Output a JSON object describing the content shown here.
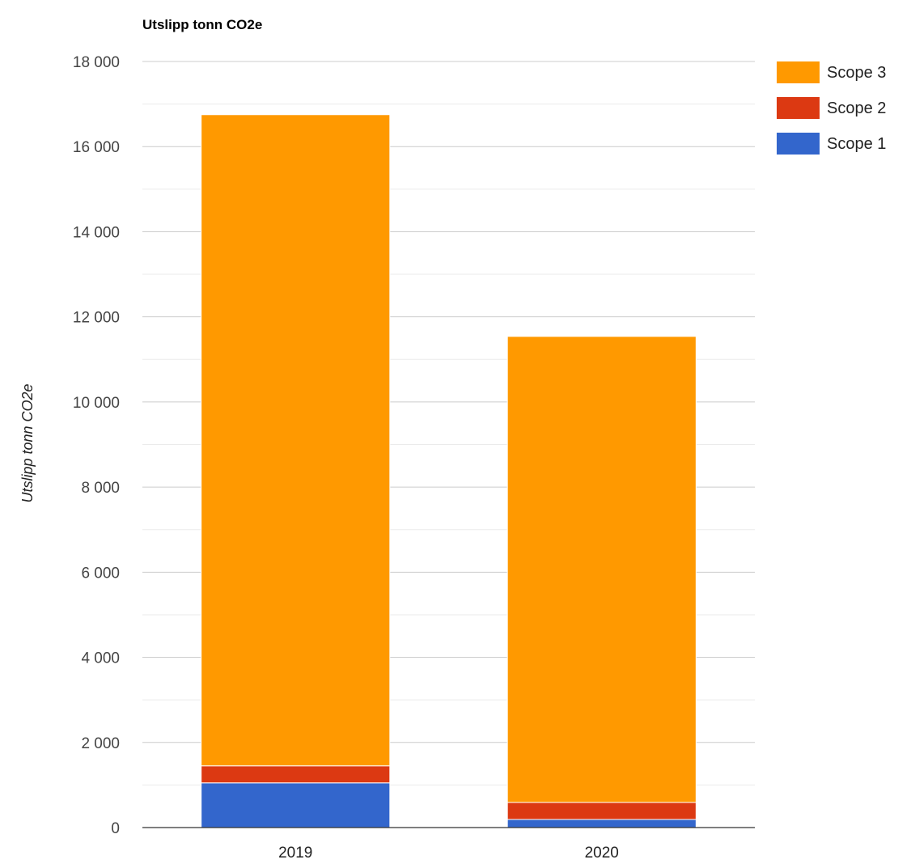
{
  "chart_data": {
    "type": "bar",
    "stacked": true,
    "title": "Utslipp tonn CO2e",
    "xlabel": "",
    "ylabel": "Utslipp tonn CO2e",
    "categories": [
      "2019",
      "2020"
    ],
    "series": [
      {
        "name": "Scope 1",
        "color": "#3366cc",
        "values": [
          1050,
          190
        ]
      },
      {
        "name": "Scope 2",
        "color": "#dc3912",
        "values": [
          400,
          400
        ]
      },
      {
        "name": "Scope 3",
        "color": "#ff9900",
        "values": [
          15300,
          10950
        ]
      }
    ],
    "ylim": [
      0,
      18000
    ],
    "yticks": [
      "0",
      "2 000",
      "4 000",
      "6 000",
      "8 000",
      "10 000",
      "12 000",
      "14 000",
      "16 000",
      "18 000"
    ],
    "grid": true,
    "legend_position": "right"
  }
}
